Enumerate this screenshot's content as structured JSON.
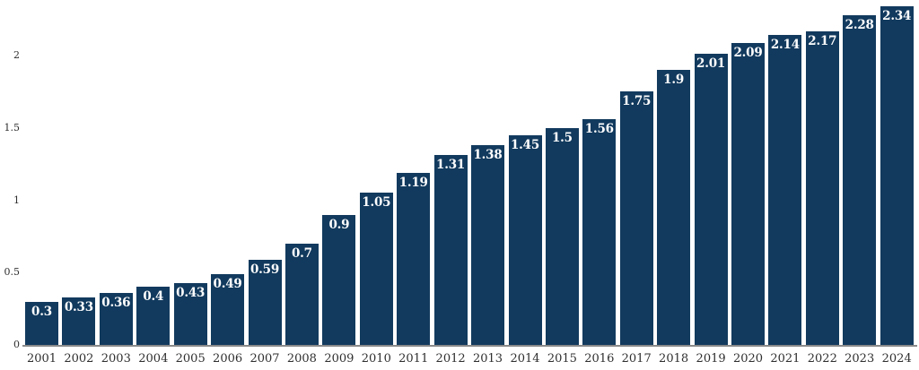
{
  "chart_data": {
    "type": "bar",
    "title": "",
    "xlabel": "",
    "ylabel": "",
    "categories": [
      "2001",
      "2002",
      "2003",
      "2004",
      "2005",
      "2006",
      "2007",
      "2008",
      "2009",
      "2010",
      "2011",
      "2012",
      "2013",
      "2014",
      "2015",
      "2016",
      "2017",
      "2018",
      "2019",
      "2020",
      "2021",
      "2022",
      "2023",
      "2024"
    ],
    "values": [
      0.3,
      0.33,
      0.36,
      0.4,
      0.43,
      0.49,
      0.59,
      0.7,
      0.9,
      1.05,
      1.19,
      1.31,
      1.38,
      1.45,
      1.5,
      1.56,
      1.75,
      1.9,
      2.01,
      2.09,
      2.14,
      2.17,
      2.28,
      2.34
    ],
    "value_labels": [
      "0.3",
      "0.33",
      "0.36",
      "0.4",
      "0.43",
      "0.49",
      "0.59",
      "0.7",
      "0.9",
      "1.05",
      "1.19",
      "1.31",
      "1.38",
      "1.45",
      "1.5",
      "1.56",
      "1.75",
      "1.9",
      "2.01",
      "2.09",
      "2.14",
      "2.17",
      "2.28",
      "2.34"
    ],
    "y_ticks": [
      0,
      0.5,
      1,
      1.5,
      2
    ],
    "y_tick_labels": [
      "0",
      "0.5",
      "1",
      "1.5",
      "2"
    ],
    "ylim": [
      0,
      2.39
    ],
    "grid": false,
    "legend": "none",
    "value_labels_position": "inside-top",
    "colors": {
      "bar": "#123a5e",
      "bar_value_text": "#ffffff",
      "axis_line": "#8a8a8a",
      "tick_text": "#2f2f2f"
    }
  }
}
